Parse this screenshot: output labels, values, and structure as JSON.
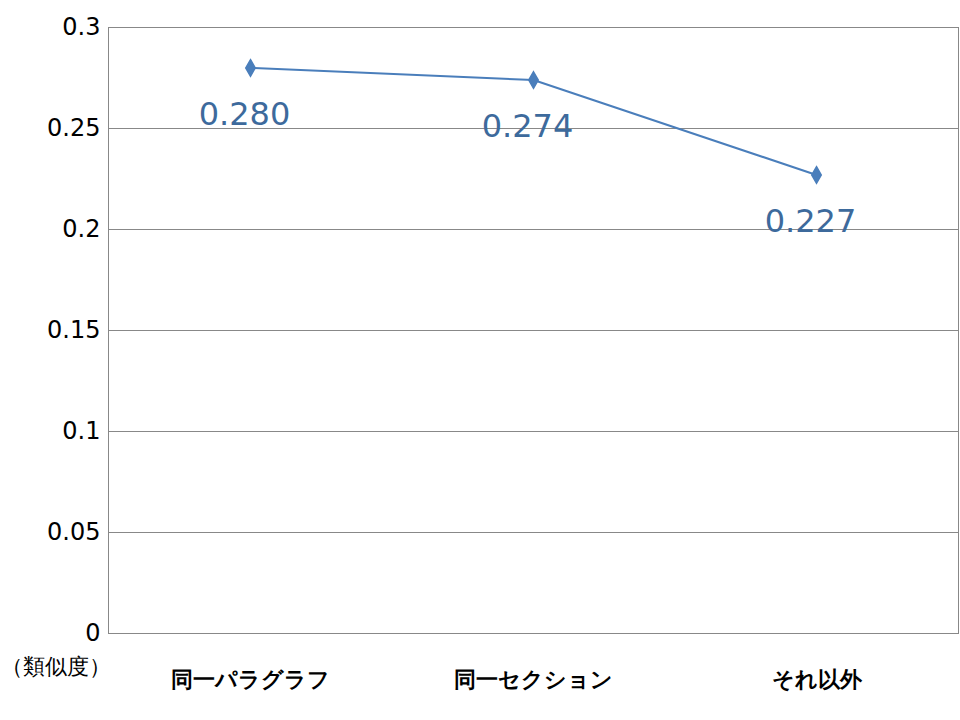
{
  "chart_data": {
    "type": "line",
    "categories": [
      "同一パラグラフ",
      "同一セクション",
      "それ以外"
    ],
    "values": [
      0.28,
      0.274,
      0.227
    ],
    "value_labels": [
      "0.280",
      "0.274",
      "0.227"
    ],
    "color": "#4a7ebb",
    "marker": "diamond",
    "y_label": "（類似度）",
    "ylim": [
      0,
      0.3
    ],
    "yticks": [
      0,
      0.05,
      0.1,
      0.15,
      0.2,
      0.25,
      0.3
    ],
    "grid": true,
    "data_labels": true
  }
}
